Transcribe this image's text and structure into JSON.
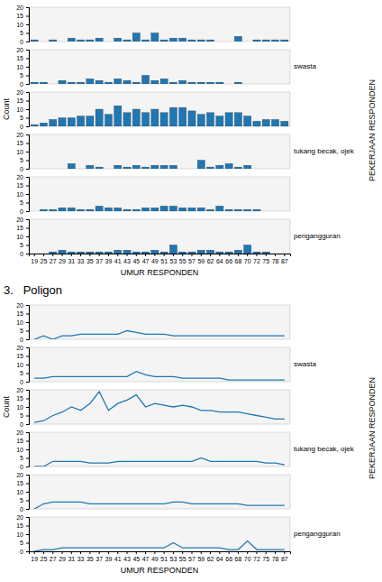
{
  "chart_data": [
    {
      "type": "bar",
      "xlabel": "UMUR RESPONDEN",
      "ylabel": "Count",
      "annotations": [
        "PEKERJAAN RESPONDEN"
      ],
      "categories": [
        19,
        25,
        27,
        29,
        31,
        33,
        35,
        37,
        39,
        41,
        43,
        45,
        47,
        49,
        51,
        53,
        55,
        57,
        59,
        62,
        64,
        66,
        68,
        70,
        72,
        75,
        78,
        87
      ],
      "ylim": [
        0,
        20
      ],
      "yticks": [
        0,
        5,
        10,
        15,
        20
      ],
      "series": [
        {
          "values": [
            1,
            0,
            1,
            0,
            2,
            1,
            1,
            2,
            0,
            2,
            1,
            5,
            1,
            5,
            1,
            2,
            2,
            1,
            1,
            1,
            0,
            0,
            3,
            0,
            1,
            1,
            1,
            1
          ]
        },
        {
          "name": "swasta",
          "values": [
            1,
            1,
            0,
            2,
            1,
            1,
            3,
            2,
            1,
            3,
            2,
            1,
            5,
            2,
            3,
            1,
            2,
            1,
            1,
            1,
            1,
            0,
            1,
            0,
            0,
            0,
            0,
            0
          ]
        },
        {
          "values": [
            1,
            2,
            4,
            5,
            5,
            6,
            6,
            10,
            7,
            12,
            8,
            10,
            8,
            10,
            8,
            11,
            11,
            9,
            7,
            8,
            6,
            8,
            8,
            6,
            3,
            4,
            4,
            3
          ]
        },
        {
          "name": "tukang becak, ojek",
          "values": [
            0,
            0,
            0,
            0,
            3,
            0,
            2,
            1,
            0,
            2,
            1,
            2,
            1,
            2,
            2,
            2,
            0,
            0,
            5,
            1,
            2,
            3,
            1,
            2,
            0,
            0,
            0,
            0
          ]
        },
        {
          "values": [
            0,
            1,
            1,
            2,
            2,
            1,
            1,
            3,
            2,
            2,
            1,
            1,
            2,
            2,
            3,
            3,
            2,
            2,
            2,
            1,
            3,
            1,
            1,
            1,
            1,
            0,
            0,
            0
          ]
        },
        {
          "name": "pengangguran",
          "values": [
            0,
            0,
            1,
            2,
            1,
            1,
            1,
            1,
            1,
            2,
            2,
            1,
            1,
            2,
            1,
            5,
            1,
            1,
            2,
            2,
            1,
            1,
            2,
            5,
            1,
            1,
            0,
            0
          ]
        }
      ]
    },
    {
      "type": "line",
      "title": "3.   Poligon",
      "xlabel": "UMUR RESPONDEN",
      "ylabel": "Count",
      "annotations": [
        "PEKERJAAN RESPONDEN"
      ],
      "categories": [
        19,
        25,
        27,
        29,
        31,
        33,
        35,
        37,
        39,
        41,
        43,
        45,
        47,
        49,
        51,
        53,
        55,
        57,
        59,
        62,
        64,
        66,
        68,
        70,
        72,
        75,
        78,
        87
      ],
      "ylim": [
        0,
        20
      ],
      "yticks": [
        0,
        5,
        10,
        15,
        20
      ],
      "series": [
        {
          "values": [
            0,
            2,
            0,
            2,
            2,
            3,
            3,
            3,
            3,
            3,
            5,
            4,
            3,
            3,
            3,
            2,
            2,
            2,
            2,
            2,
            2,
            2,
            2,
            2,
            2,
            2,
            2,
            2
          ]
        },
        {
          "name": "swasta",
          "values": [
            2,
            2,
            3,
            3,
            3,
            3,
            3,
            3,
            3,
            3,
            3,
            6,
            4,
            3,
            3,
            3,
            2,
            2,
            2,
            2,
            2,
            1,
            1,
            1,
            1,
            1,
            1,
            1
          ]
        },
        {
          "values": [
            1,
            2,
            5,
            7,
            10,
            8,
            12,
            19,
            8,
            12,
            14,
            17,
            10,
            12,
            11,
            10,
            11,
            10,
            8,
            8,
            7,
            7,
            7,
            6,
            5,
            4,
            3,
            3
          ]
        },
        {
          "name": "tukang becak, ojek",
          "values": [
            0,
            0,
            3,
            3,
            3,
            3,
            2,
            2,
            2,
            3,
            3,
            3,
            3,
            3,
            3,
            3,
            3,
            3,
            5,
            3,
            3,
            3,
            3,
            3,
            3,
            2,
            2,
            1
          ]
        },
        {
          "values": [
            0,
            3,
            4,
            4,
            4,
            4,
            3,
            3,
            3,
            3,
            3,
            3,
            3,
            3,
            3,
            4,
            4,
            3,
            3,
            3,
            3,
            3,
            3,
            2,
            2,
            2,
            2,
            2
          ]
        },
        {
          "name": "pengangguran",
          "values": [
            0,
            1,
            1,
            2,
            2,
            2,
            2,
            2,
            2,
            2,
            2,
            2,
            2,
            2,
            2,
            5,
            2,
            2,
            2,
            2,
            2,
            1,
            1,
            6,
            1,
            1,
            1,
            1
          ]
        }
      ]
    }
  ]
}
